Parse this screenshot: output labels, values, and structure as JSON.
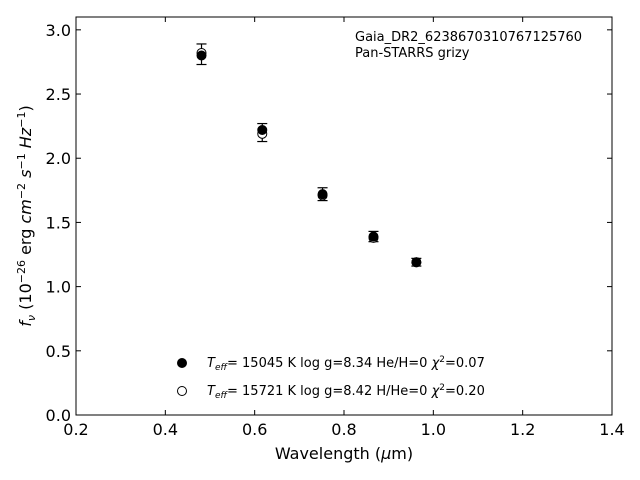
{
  "chart_data": {
    "type": "scatter",
    "title": "",
    "xlabel": "Wavelength (μm)",
    "ylabel": "f_ν (10^-26 erg cm^-2 s^-1 Hz^-1)",
    "xlim": [
      0.2,
      1.4
    ],
    "ylim": [
      0.0,
      3.1
    ],
    "xticks": [
      0.2,
      0.4,
      0.6,
      0.8,
      1.0,
      1.2,
      1.4
    ],
    "xtick_labels": [
      "0.2",
      "0.4",
      "0.6",
      "0.8",
      "1.0",
      "1.2",
      "1.4"
    ],
    "yticks": [
      0.0,
      0.5,
      1.0,
      1.5,
      2.0,
      2.5,
      3.0
    ],
    "ytick_labels": [
      "0.0",
      "0.5",
      "1.0",
      "1.5",
      "2.0",
      "2.5",
      "3.0"
    ],
    "grid": false,
    "legend_position": "bottom-center",
    "annotations": [
      "Gaia_DR2_6238670310767125760",
      "Pan-STARRS grizy"
    ],
    "observed": {
      "x": [
        0.481,
        0.617,
        0.752,
        0.866,
        0.962
      ],
      "y": [
        2.81,
        2.2,
        1.72,
        1.39,
        1.19
      ],
      "yerr": [
        0.08,
        0.07,
        0.05,
        0.04,
        0.03
      ]
    },
    "series": [
      {
        "name": "T_eff= 15045 K  log g=8.34  He/H=0  χ²=0.07",
        "marker": "filled-circle",
        "x": [
          0.481,
          0.617,
          0.752,
          0.866,
          0.962
        ],
        "y": [
          2.8,
          2.22,
          1.72,
          1.39,
          1.19
        ]
      },
      {
        "name": "T_eff= 15721 K  log g=8.42  H/He=0  χ²=0.20",
        "marker": "open-circle",
        "x": [
          0.481,
          0.617,
          0.752,
          0.866,
          0.962
        ],
        "y": [
          2.82,
          2.19,
          1.71,
          1.38,
          1.19
        ]
      }
    ],
    "colors": {
      "marker": "#000000",
      "background": "#ffffff"
    }
  }
}
